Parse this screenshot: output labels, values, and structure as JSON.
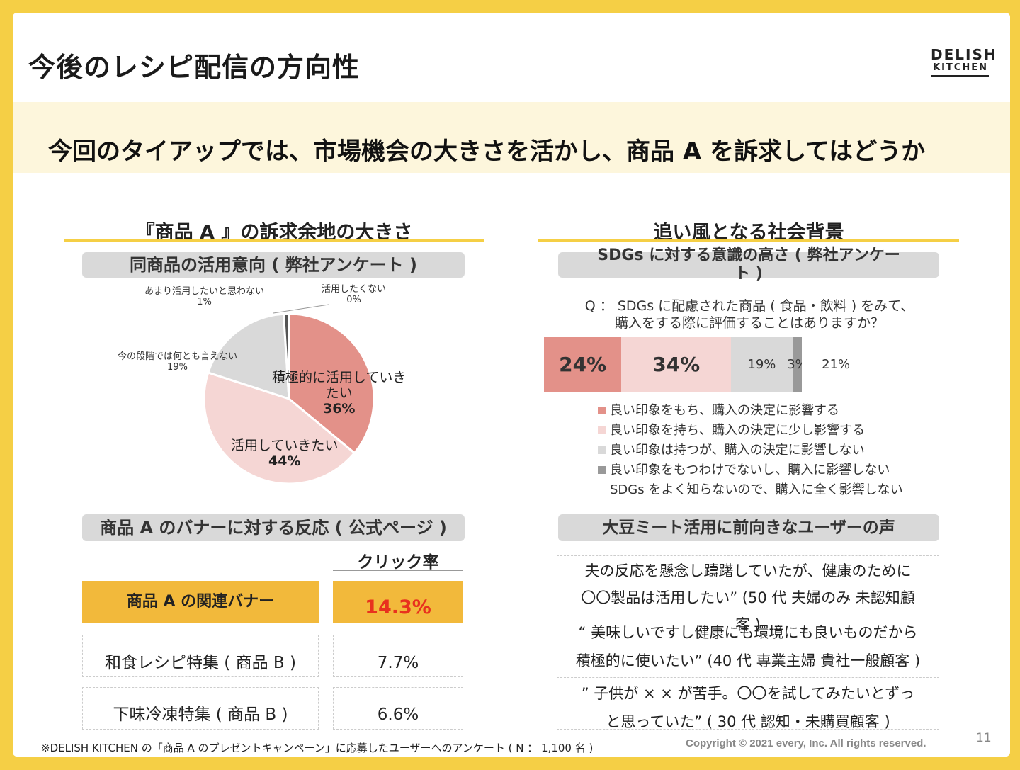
{
  "title": "今後のレシピ配信の方向性",
  "logo": {
    "line1": "DELISH",
    "line2": "KITCHEN"
  },
  "headline": "今回のタイアップでは、市場機会の大きさを活かし、商品 A を訴求してはどうか",
  "left_section": {
    "title": "『商品 A 』の訴求余地の大きさ",
    "survey_header": "同商品の活用意向 ( 弊社アンケート )",
    "pie": {
      "labels": {
        "active_name": "積極的に活用していき",
        "active_name2": "たい",
        "active_pct": "36%",
        "want_name": "活用していきたい",
        "want_pct": "44%",
        "undecided_name": "今の段階では何とも言えない",
        "undecided_pct": "19%",
        "rarely_name": "あまり活用したいと思わない",
        "rarely_pct": "1%",
        "no_name": "活用したくない",
        "no_pct": "0%"
      }
    },
    "banner_header": "商品 A のバナーに対する反応 ( 公式ページ )",
    "click_header": "クリック率",
    "rows": [
      {
        "name": "商品 A の関連バナー",
        "rate": "14.3%"
      },
      {
        "name": "和食レシピ特集 ( 商品 B )",
        "rate": "7.7%"
      },
      {
        "name": "下味冷凍特集 ( 商品 B )",
        "rate": "6.6%"
      }
    ]
  },
  "right_section": {
    "title": "追い風となる社会背景",
    "survey_header_line1": "SDGs に対する意識の高さ ( 弊社アンケー",
    "survey_header_line2": "ト )",
    "question_line1": "Q ： SDGs に配慮された商品 ( 食品・飲料 ) をみて、",
    "question_line2": "購入をする際に評価することはありますか？",
    "bar_labels": [
      "24%",
      "34%",
      "19%",
      "3%",
      "21%"
    ],
    "legend": [
      "良い印象をもち、購入の決定に影響する",
      "良い印象を持ち、購入の決定に少し影響する",
      "良い印象は持つが、購入の決定に影響しない",
      "良い印象をもつわけでないし、購入に影響しない",
      "SDGs をよく知らないので、購入に全く影響しない"
    ],
    "voice_header": "大豆ミート活用に前向きなユーザーの声",
    "quotes": [
      {
        "l1": "夫の反応を懸念し躊躇していたが、健康のために",
        "l2": "〇〇製品は活用したい” (50 代 夫婦のみ 未認知顧",
        "l3": "客 )"
      },
      {
        "l1": "“ 美味しいですし健康にも環境にも良いものだから",
        "l2": "積極的に使いたい” (40 代 専業主婦 貴社一般顧客 )"
      },
      {
        "l1": "” 子供が × × が苦手。〇〇を試してみたいとずっ",
        "l2": "と思っていた” ( 30 代 認知・未購買顧客 )"
      }
    ]
  },
  "chart_data": [
    {
      "type": "pie",
      "title": "同商品の活用意向 ( 弊社アンケート )",
      "categories": [
        "積極的に活用していきたい",
        "活用していきたい",
        "今の段階では何とも言えない",
        "あまり活用したいと思わない",
        "活用したくない"
      ],
      "values": [
        36,
        44,
        19,
        1,
        0
      ]
    },
    {
      "type": "bar",
      "stacked": true,
      "orientation": "horizontal",
      "title": "SDGs に対する意識の高さ ( 弊社アンケート )",
      "categories": [
        "良い印象をもち、購入の決定に影響する",
        "良い印象を持ち、購入の決定に少し影響する",
        "良い印象は持つが、購入の決定に影響しない",
        "良い印象をもつわけでないし、購入に影響しない",
        "SDGs をよく知らないので、購入に全く影響しない"
      ],
      "values": [
        24,
        34,
        19,
        3,
        21
      ]
    }
  ],
  "colors": {
    "accent": "#f5cf45",
    "pie1": "#e39189",
    "pie2": "#f5d6d4",
    "pie3": "#d9d9d9",
    "pie4": "#555555",
    "highlight": "#f2b93b",
    "rate_red": "#e8321e"
  },
  "footnote": "※DELISH KITCHEN の「商品 A のプレゼントキャンペーン」に応募したユーザーへのアンケート ( N ： 1,100 名 )",
  "copyright": "Copyright © 2021 every, Inc. All rights reserved.",
  "page_number": "11"
}
